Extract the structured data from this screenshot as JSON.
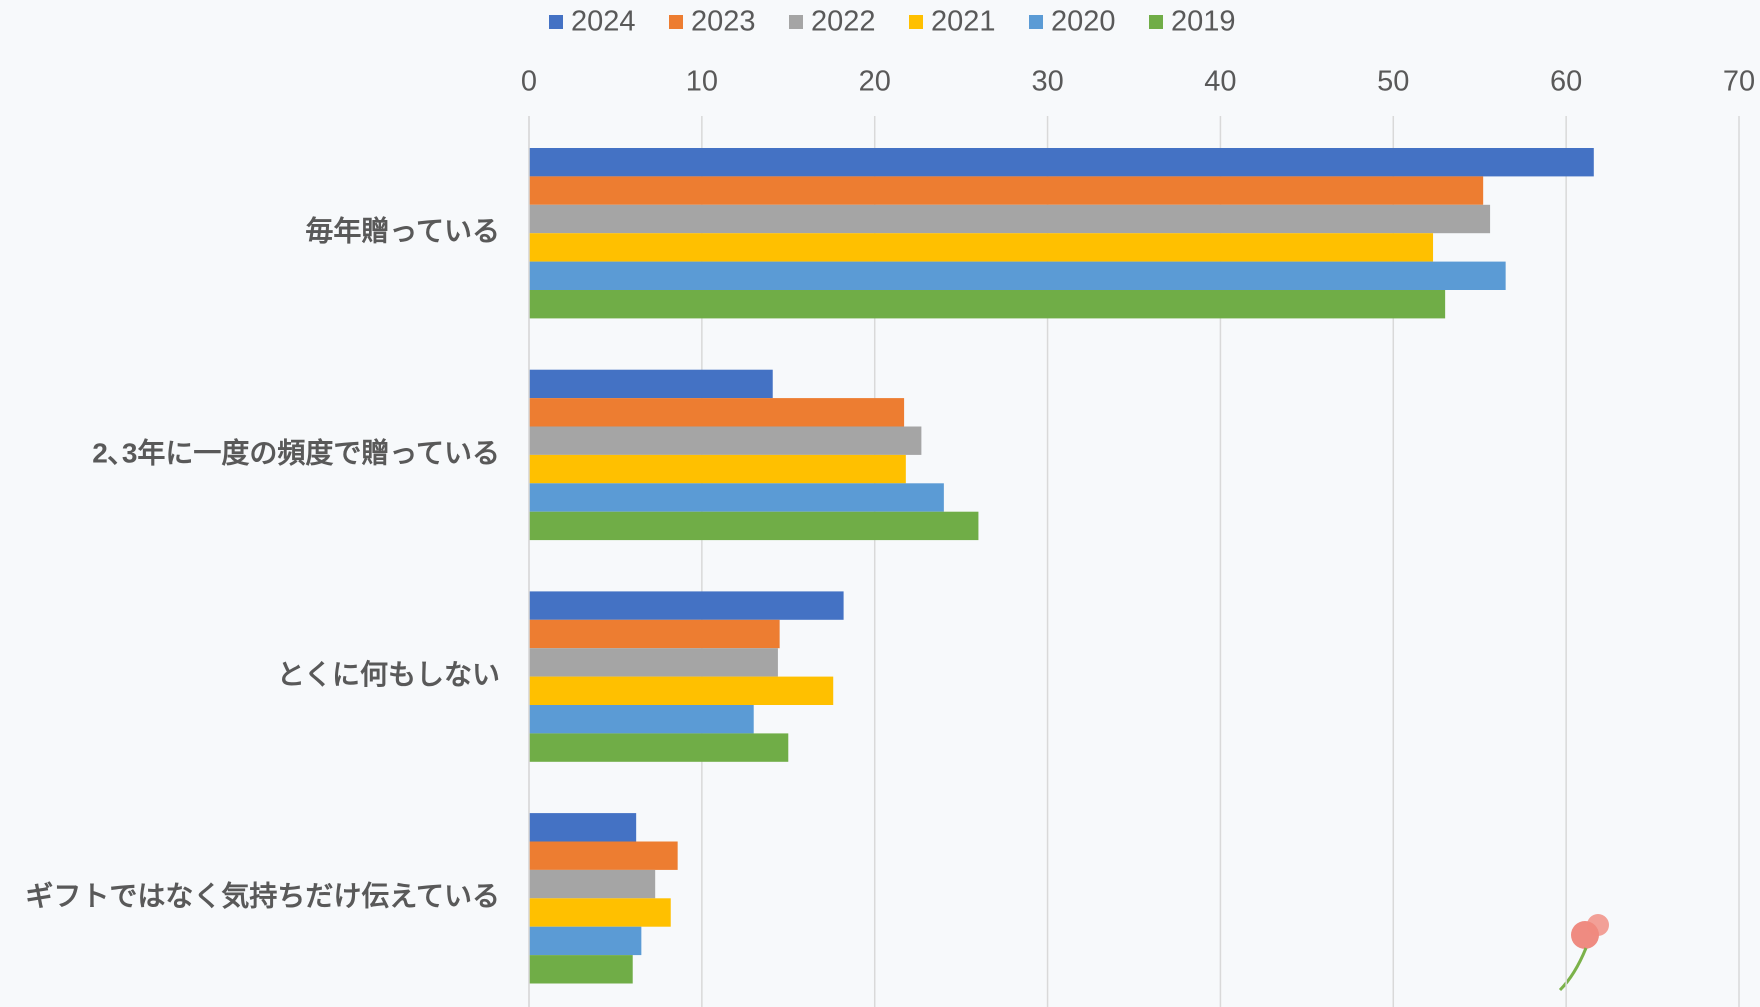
{
  "chart_data": {
    "type": "hbar",
    "categories": [
      "毎年贈っている",
      "2､3年に一度の頻度で贈っている",
      "とくに何もしない",
      "ギフトではなく気持ちだけ伝えている"
    ],
    "series": [
      {
        "name": "2024",
        "color": "#4472c4",
        "values": [
          61.6,
          14.1,
          18.2,
          6.2
        ]
      },
      {
        "name": "2023",
        "color": "#ed7d31",
        "values": [
          55.2,
          21.7,
          14.5,
          8.6
        ]
      },
      {
        "name": "2022",
        "color": "#a5a5a5",
        "values": [
          55.6,
          22.7,
          14.4,
          7.3
        ]
      },
      {
        "name": "2021",
        "color": "#ffc000",
        "values": [
          52.3,
          21.8,
          17.6,
          8.2
        ]
      },
      {
        "name": "2020",
        "color": "#5b9bd5",
        "values": [
          56.5,
          24.0,
          13.0,
          6.5
        ]
      },
      {
        "name": "2019",
        "color": "#70ad47",
        "values": [
          53.0,
          26.0,
          15.0,
          6.0
        ]
      }
    ],
    "xlim": [
      0,
      70
    ],
    "xticks": [
      0,
      10,
      20,
      30,
      40,
      50,
      60,
      70
    ],
    "grid": true,
    "legend": "top"
  }
}
